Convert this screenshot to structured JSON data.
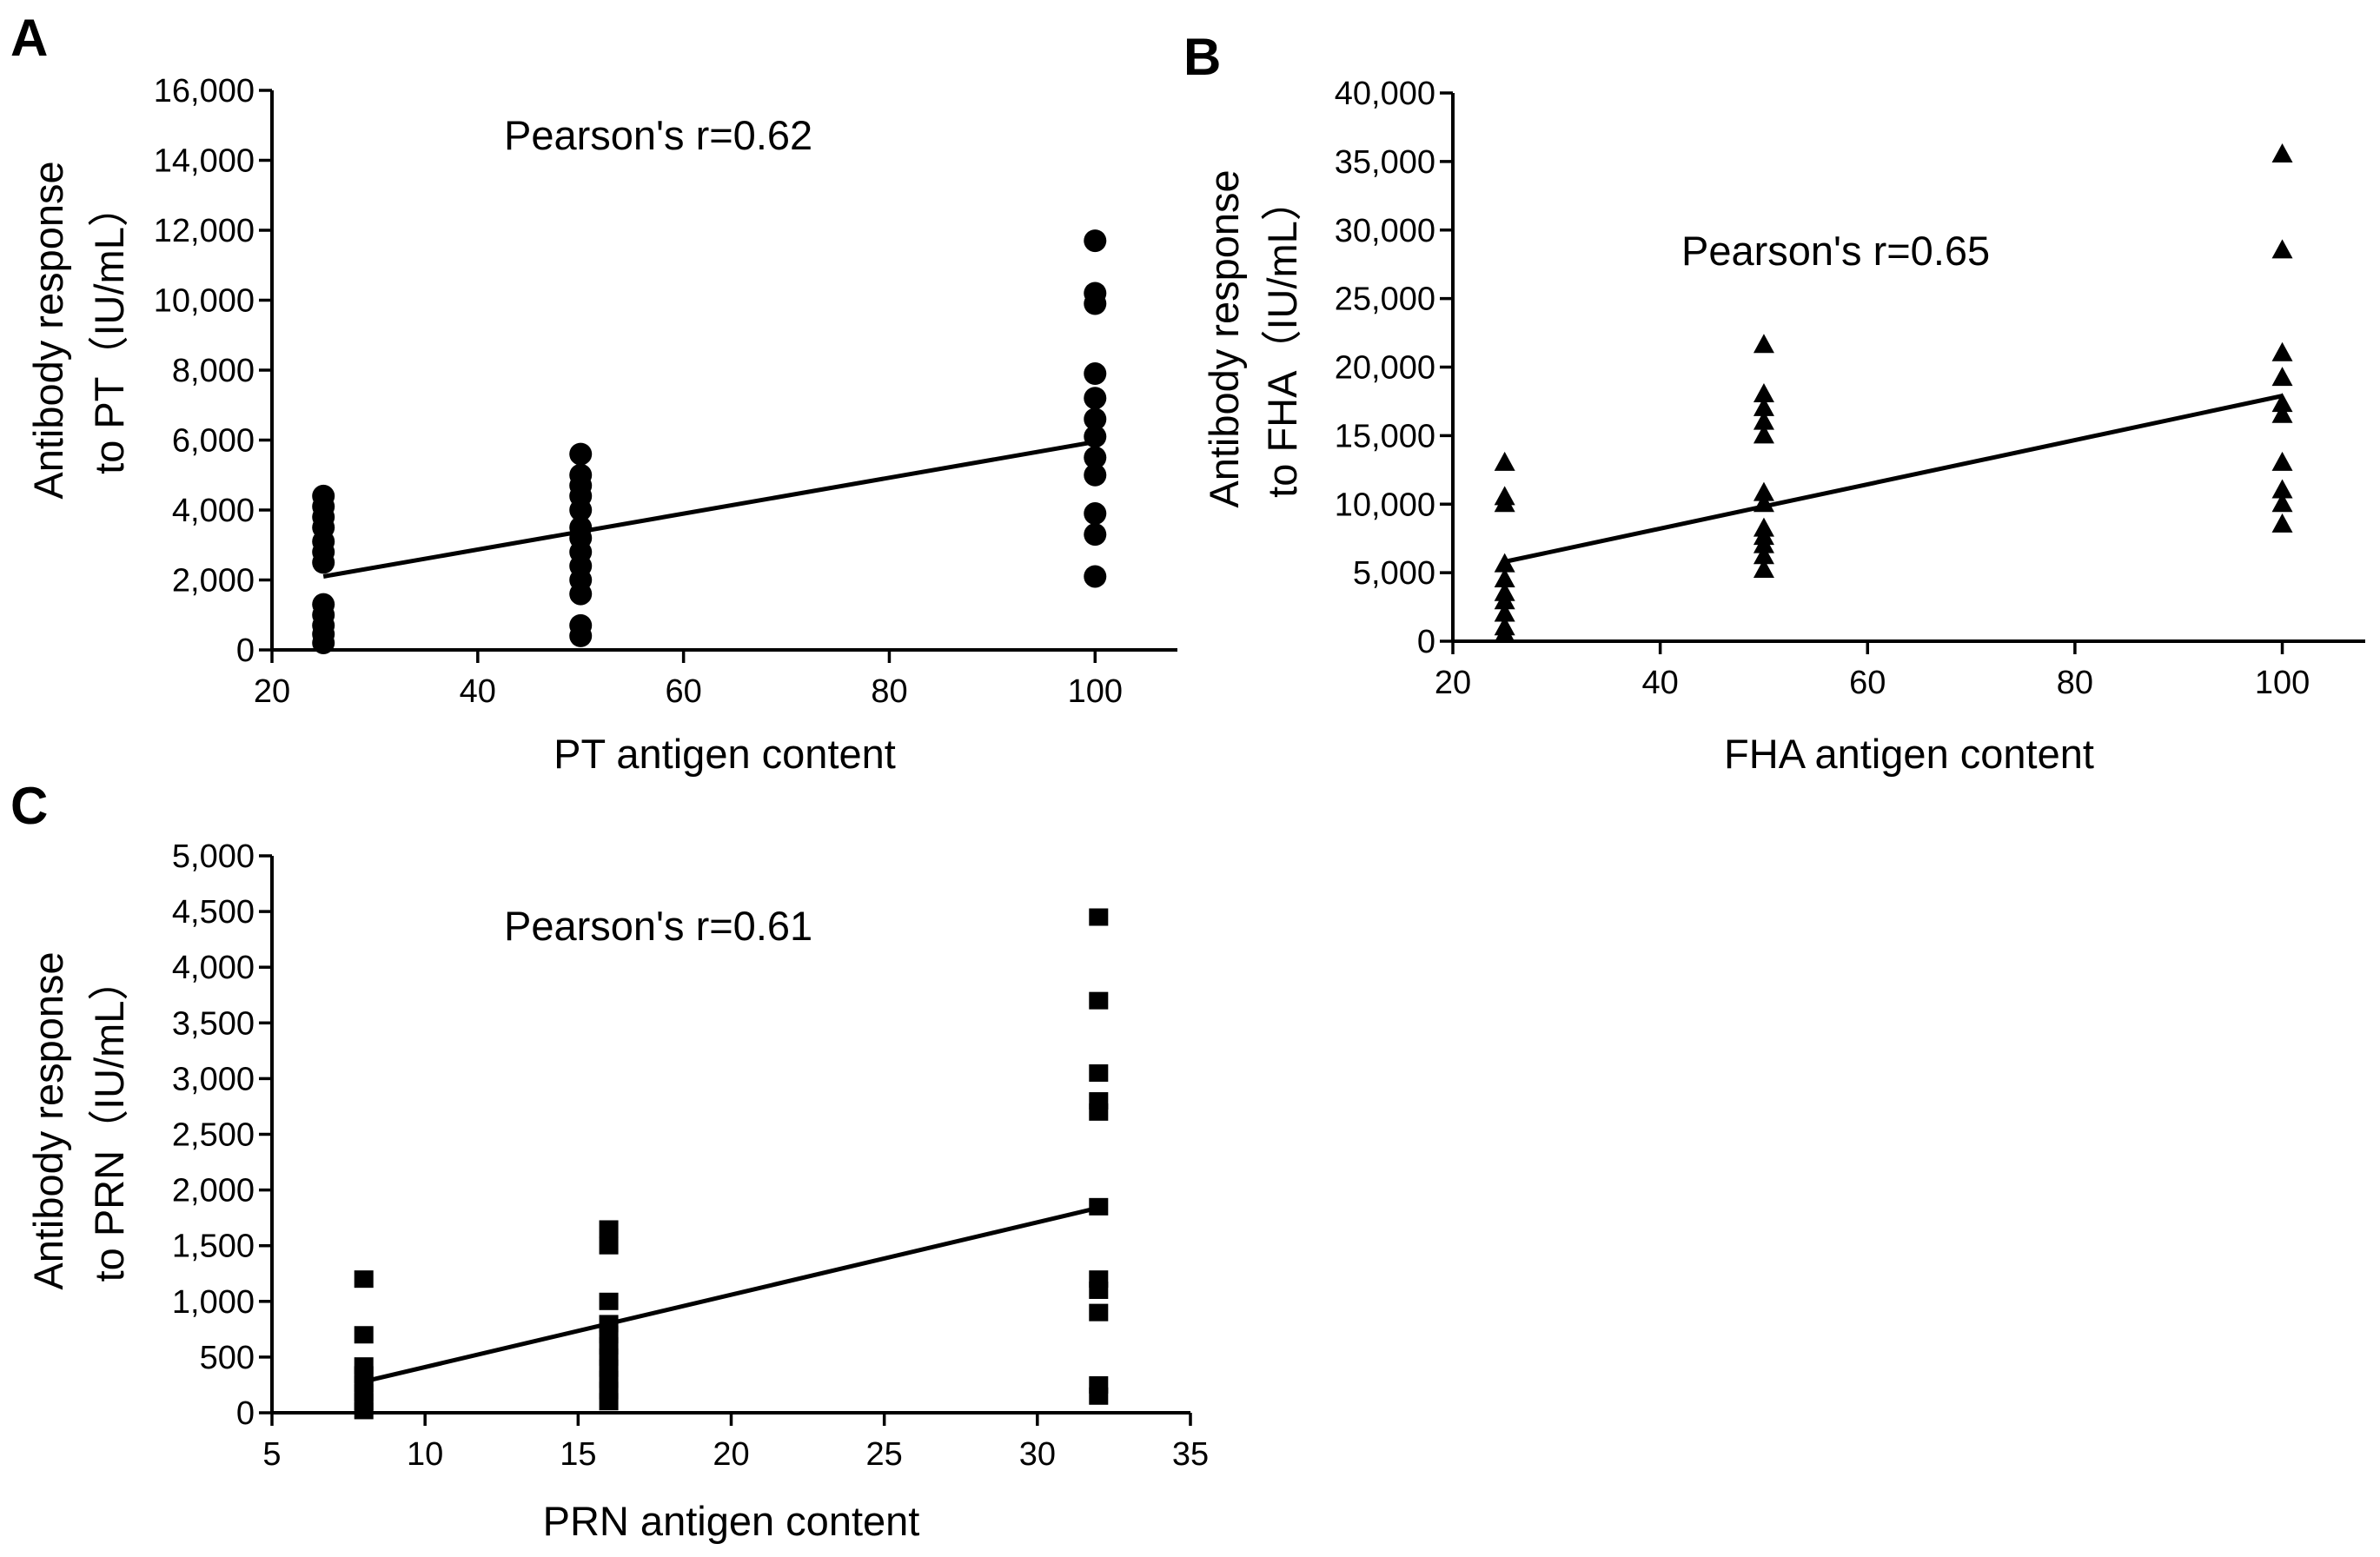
{
  "chart_data": [
    {
      "panel": "A",
      "type": "scatter",
      "marker": "circle",
      "annotation": "Pearson's r=0.62",
      "xlabel": "PT antigen content",
      "ylabel_lines": [
        "Antibody response",
        "to PT（IU/mL）"
      ],
      "xlim": [
        20,
        108
      ],
      "ylim": [
        0,
        16000
      ],
      "xticks": [
        20,
        40,
        60,
        80,
        100
      ],
      "xtick_labels": [
        "20",
        "40",
        "60",
        "80",
        "100"
      ],
      "yticks": [
        0,
        2000,
        4000,
        6000,
        8000,
        10000,
        12000,
        14000,
        16000
      ],
      "ytick_labels": [
        "0",
        "2,000",
        "4,000",
        "6,000",
        "8,000",
        "10,000",
        "12,000",
        "14,000",
        "16,000"
      ],
      "points": [
        [
          25,
          200
        ],
        [
          25,
          450
        ],
        [
          25,
          700
        ],
        [
          25,
          1000
        ],
        [
          25,
          1300
        ],
        [
          25,
          2500
        ],
        [
          25,
          2800
        ],
        [
          25,
          3100
        ],
        [
          25,
          3500
        ],
        [
          25,
          3800
        ],
        [
          25,
          4100
        ],
        [
          25,
          4400
        ],
        [
          50,
          400
        ],
        [
          50,
          700
        ],
        [
          50,
          1600
        ],
        [
          50,
          2000
        ],
        [
          50,
          2400
        ],
        [
          50,
          2800
        ],
        [
          50,
          3200
        ],
        [
          50,
          3500
        ],
        [
          50,
          4000
        ],
        [
          50,
          4400
        ],
        [
          50,
          4700
        ],
        [
          50,
          5000
        ],
        [
          50,
          5600
        ],
        [
          100,
          2100
        ],
        [
          100,
          3300
        ],
        [
          100,
          3900
        ],
        [
          100,
          5000
        ],
        [
          100,
          5500
        ],
        [
          100,
          6100
        ],
        [
          100,
          6600
        ],
        [
          100,
          7200
        ],
        [
          100,
          7900
        ],
        [
          100,
          9900
        ],
        [
          100,
          10200
        ],
        [
          100,
          11700
        ]
      ],
      "fit_line": [
        [
          25,
          2100
        ],
        [
          100,
          5950
        ]
      ]
    },
    {
      "panel": "B",
      "type": "scatter",
      "marker": "triangle",
      "annotation": "Pearson's r=0.65",
      "xlabel": "FHA antigen content",
      "ylabel_lines": [
        "Antibody response",
        "to FHA（IU/mL）"
      ],
      "xlim": [
        20,
        108
      ],
      "ylim": [
        0,
        40000
      ],
      "xticks": [
        20,
        40,
        60,
        80,
        100
      ],
      "xtick_labels": [
        "20",
        "40",
        "60",
        "80",
        "100"
      ],
      "yticks": [
        0,
        5000,
        10000,
        15000,
        20000,
        25000,
        30000,
        35000,
        40000
      ],
      "ytick_labels": [
        "0",
        "5,000",
        "10,000",
        "15,000",
        "20,000",
        "25,000",
        "30,000",
        "35,000",
        "40,000"
      ],
      "points": [
        [
          25,
          500
        ],
        [
          25,
          1000
        ],
        [
          25,
          2000
        ],
        [
          25,
          2900
        ],
        [
          25,
          3500
        ],
        [
          25,
          4500
        ],
        [
          25,
          5600
        ],
        [
          25,
          10000
        ],
        [
          25,
          10500
        ],
        [
          25,
          13000
        ],
        [
          50,
          5200
        ],
        [
          50,
          6200
        ],
        [
          50,
          7000
        ],
        [
          50,
          7600
        ],
        [
          50,
          8200
        ],
        [
          50,
          10000
        ],
        [
          50,
          10800
        ],
        [
          50,
          15000
        ],
        [
          50,
          16000
        ],
        [
          50,
          17000
        ],
        [
          50,
          18000
        ],
        [
          50,
          21600
        ],
        [
          100,
          8500
        ],
        [
          100,
          10000
        ],
        [
          100,
          11000
        ],
        [
          100,
          13000
        ],
        [
          100,
          16500
        ],
        [
          100,
          17300
        ],
        [
          100,
          19200
        ],
        [
          100,
          21000
        ],
        [
          100,
          28500
        ],
        [
          100,
          35500
        ]
      ],
      "fit_line": [
        [
          25,
          5800
        ],
        [
          100,
          17900
        ]
      ]
    },
    {
      "panel": "C",
      "type": "scatter",
      "marker": "square",
      "annotation": "Pearson's r=0.61",
      "xlabel": "PRN antigen content",
      "ylabel_lines": [
        "Antibody response",
        "to PRN（IU/mL）"
      ],
      "xlim": [
        5,
        35
      ],
      "ylim": [
        0,
        5000
      ],
      "xticks": [
        5,
        10,
        15,
        20,
        25,
        30,
        35
      ],
      "xtick_labels": [
        "5",
        "10",
        "15",
        "20",
        "25",
        "30",
        "35"
      ],
      "yticks": [
        0,
        500,
        1000,
        1500,
        2000,
        2500,
        3000,
        3500,
        4000,
        4500,
        5000
      ],
      "ytick_labels": [
        "0",
        "500",
        "1,000",
        "1,500",
        "2,000",
        "2,500",
        "3,000",
        "3,500",
        "4,000",
        "4,500",
        "5,000"
      ],
      "points": [
        [
          8,
          20
        ],
        [
          8,
          100
        ],
        [
          8,
          180
        ],
        [
          8,
          260
        ],
        [
          8,
          340
        ],
        [
          8,
          420
        ],
        [
          8,
          700
        ],
        [
          8,
          1200
        ],
        [
          16,
          100
        ],
        [
          16,
          200
        ],
        [
          16,
          300
        ],
        [
          16,
          400
        ],
        [
          16,
          500
        ],
        [
          16,
          600
        ],
        [
          16,
          700
        ],
        [
          16,
          800
        ],
        [
          16,
          1000
        ],
        [
          16,
          1500
        ],
        [
          16,
          1650
        ],
        [
          32,
          150
        ],
        [
          32,
          250
        ],
        [
          32,
          900
        ],
        [
          32,
          1100
        ],
        [
          32,
          1200
        ],
        [
          32,
          1850
        ],
        [
          32,
          2700
        ],
        [
          32,
          2800
        ],
        [
          32,
          3050
        ],
        [
          32,
          3700
        ],
        [
          32,
          4450
        ]
      ],
      "fit_line": [
        [
          8,
          280
        ],
        [
          32,
          1840
        ]
      ]
    }
  ]
}
